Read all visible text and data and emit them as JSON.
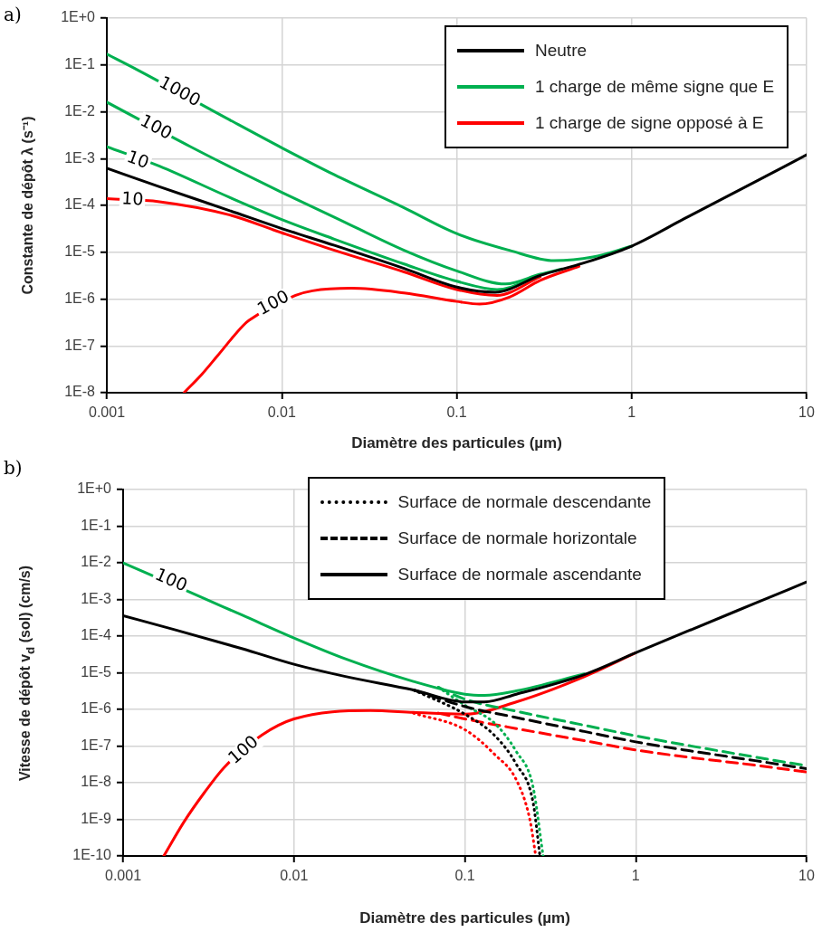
{
  "chart_data": [
    {
      "type": "line",
      "title": "a)",
      "xlabel": "Diamètre des particules (µm)",
      "ylabel": "Constante de dépôt λ (s⁻¹)",
      "log": "xy",
      "grid": true,
      "legend": "top right",
      "xlim": [
        0.001,
        10
      ],
      "xticks": [
        0.001,
        0.01,
        0.1,
        1,
        10
      ],
      "ylim": [
        1e-08,
        1
      ],
      "yticks": [
        {
          "value": 1e-08,
          "label": "1E-8"
        },
        {
          "value": 1e-07,
          "label": "1E-7"
        },
        {
          "value": 1e-06,
          "label": "1E-6"
        },
        {
          "value": 1e-05,
          "label": "1E-5"
        },
        {
          "value": 0.0001,
          "label": "1E-4"
        },
        {
          "value": 0.001,
          "label": "1E-3"
        },
        {
          "value": 0.01,
          "label": "1E-2"
        },
        {
          "value": 0.1,
          "label": "1E-1"
        },
        {
          "value": 1,
          "label": "1E+0"
        }
      ],
      "series": [
        {
          "name": "Neutre",
          "color": "#000000",
          "x": [
            0.001,
            0.002,
            0.005,
            0.01,
            0.02,
            0.05,
            0.1,
            0.166,
            0.3,
            0.5,
            1,
            2,
            5,
            10
          ],
          "values": [
            0.00062,
            0.00025,
            7.8e-05,
            3.2e-05,
            1.4e-05,
            4.5e-06,
            1.8e-06,
            1.4e-06,
            3.2e-06,
            5.5e-06,
            1.35e-05,
            5.2e-05,
            0.00031,
            0.0012
          ]
        },
        {
          "name": "1 charge de même signe que  E",
          "color": "#00b050",
          "x": [
            0.001,
            0.0015,
            0.005,
            0.01,
            0.02,
            0.05,
            0.1,
            0.2,
            0.36,
            0.6,
            1
          ],
          "values": [
            0.17,
            0.078,
            0.0068,
            0.0017,
            0.00045,
            8.9e-05,
            2.5e-05,
            1.1e-05,
            6.6e-06,
            7.9e-06,
            1.35e-05
          ]
        },
        {
          "color": "#00b050",
          "x": [
            0.001,
            0.003,
            0.005,
            0.01,
            0.02,
            0.05,
            0.1,
            0.19,
            0.3,
            0.4
          ],
          "values": [
            0.016,
            0.0018,
            0.00068,
            0.00019,
            5.6e-05,
            1.1e-05,
            4e-06,
            2.1e-06,
            3.4e-06,
            4.4e-06
          ]
        },
        {
          "color": "#00b050",
          "x": [
            0.001,
            0.002,
            0.005,
            0.01,
            0.02,
            0.05,
            0.1,
            0.17,
            0.3
          ],
          "values": [
            0.0018,
            0.00069,
            0.00015,
            5e-05,
            1.9e-05,
            5.6e-06,
            2.4e-06,
            1.6e-06,
            3.2e-06
          ]
        },
        {
          "name": "1 charge de signe opposé à E",
          "color": "#ff0000",
          "x": [
            0.00276,
            0.0035,
            0.0043,
            0.006,
            0.0065,
            0.012,
            0.015,
            0.025,
            0.05,
            0.1,
            0.135,
            0.2,
            0.3,
            0.5
          ],
          "values": [
            1e-08,
            2.5e-08,
            6.2e-08,
            2.7e-07,
            3.5e-07,
            1.2e-06,
            1.5e-06,
            1.7e-06,
            1.35e-06,
            8.9e-07,
            7.8e-07,
            1.1e-06,
            2.5e-06,
            5e-06
          ]
        },
        {
          "color": "#ff0000",
          "x": [
            0.001,
            0.002,
            0.005,
            0.01,
            0.02,
            0.05,
            0.1,
            0.17,
            0.3
          ],
          "values": [
            0.00014,
            0.00012,
            6.3e-05,
            2.6e-05,
            1.1e-05,
            3.8e-06,
            1.6e-06,
            1.2e-06,
            3e-06
          ]
        }
      ],
      "annotations": [
        {
          "text": "1000",
          "x": 0.0026,
          "y": 0.026
        },
        {
          "text": "100",
          "x": 0.0019,
          "y": 0.0045
        },
        {
          "text": "10",
          "x": 0.0015,
          "y": 0.0009
        },
        {
          "text": "10",
          "x": 0.0014,
          "y": 0.00013
        },
        {
          "text": "100",
          "x": 0.009,
          "y": 8e-07
        }
      ]
    },
    {
      "type": "line",
      "title": "b)",
      "xlabel": "Diamètre des particules (µm)",
      "ylabel": "Vitesse de dépôt v$_{d}$  (sol) (cm/s)",
      "log": "xy",
      "grid": true,
      "legend": "top",
      "xlim": [
        0.001,
        10
      ],
      "xticks": [
        0.001,
        0.01,
        0.1,
        1,
        10
      ],
      "ylim": [
        1e-10,
        1
      ],
      "yticks": [
        {
          "value": 1e-10,
          "label": "1E-10"
        },
        {
          "value": 1e-09,
          "label": "1E-9"
        },
        {
          "value": 1e-08,
          "label": "1E-8"
        },
        {
          "value": 1e-07,
          "label": "1E-7"
        },
        {
          "value": 1e-06,
          "label": "1E-6"
        },
        {
          "value": 1e-05,
          "label": "1E-5"
        },
        {
          "value": 0.0001,
          "label": "1E-4"
        },
        {
          "value": 0.001,
          "label": "1E-3"
        },
        {
          "value": 0.01,
          "label": "1E-2"
        },
        {
          "value": 0.1,
          "label": "1E-1"
        },
        {
          "value": 1,
          "label": "1E+0"
        }
      ],
      "series": [
        {
          "name": "Surface de normale descendante",
          "color": "#000000",
          "line_style": "dotted",
          "x": [
            0.05,
            0.1,
            0.15,
            0.2,
            0.25,
            0.275
          ],
          "values": [
            3.4e-06,
            7.4e-07,
            1.9e-07,
            3.2e-08,
            3.1e-09,
            1e-10
          ]
        },
        {
          "name": "Surface de normale horizontale",
          "color": "#000000",
          "line_style": "dashed",
          "x": [
            0.05,
            0.1,
            0.2,
            0.5,
            1,
            2,
            5,
            10
          ],
          "values": [
            3.4e-06,
            1.2e-06,
            6e-07,
            2.5e-07,
            1.3e-07,
            7.6e-08,
            4e-08,
            2.4e-08
          ]
        },
        {
          "name": "Surface de normale ascendante",
          "color": "#000000",
          "line_style": "solid",
          "x": [
            0.001,
            0.002,
            0.005,
            0.01,
            0.02,
            0.05,
            0.1,
            0.13,
            0.2,
            0.5,
            1,
            2,
            5,
            10
          ],
          "values": [
            0.00036,
            0.00015,
            4.5e-05,
            1.7e-05,
            7.9e-06,
            3.4e-06,
            1.6e-06,
            1.6e-06,
            2.6e-06,
            8.9e-06,
            3.5e-05,
            0.000135,
            0.00079,
            0.003
          ]
        },
        {
          "color": "#00b050",
          "line_style": "dotted",
          "x": [
            0.07,
            0.1,
            0.15,
            0.2,
            0.25,
            0.287
          ],
          "values": [
            4e-06,
            1.3e-06,
            4.1e-07,
            7.1e-08,
            8.1e-09,
            1e-10
          ]
        },
        {
          "color": "#00b050",
          "line_style": "dashed",
          "x": [
            0.07,
            0.1,
            0.2,
            0.5,
            1,
            2,
            5,
            10
          ],
          "values": [
            4e-06,
            1.9e-06,
            8.9e-07,
            3.7e-07,
            1.9e-07,
            1.05e-07,
            5e-08,
            2.9e-08
          ]
        },
        {
          "color": "#00b050",
          "line_style": "solid",
          "x": [
            0.001,
            0.003,
            0.005,
            0.01,
            0.02,
            0.05,
            0.1,
            0.13,
            0.2,
            0.5
          ],
          "values": [
            0.01,
            0.00105,
            0.00037,
            8.9e-05,
            2.4e-05,
            5.8e-06,
            2.6e-06,
            2.4e-06,
            3.2e-06,
            9.3e-06
          ]
        },
        {
          "color": "#ff0000",
          "line_style": "dotted",
          "x": [
            0.05,
            0.1,
            0.15,
            0.2,
            0.24,
            0.26
          ],
          "values": [
            7.9e-07,
            2.8e-07,
            5.8e-08,
            1.2e-08,
            1e-09,
            1e-10
          ]
        },
        {
          "color": "#ff0000",
          "line_style": "dashed",
          "x": [
            0.07,
            0.1,
            0.2,
            0.5,
            1,
            2,
            5,
            10
          ],
          "values": [
            7.9e-07,
            5.5e-07,
            3e-07,
            1.4e-07,
            7.8e-08,
            5e-08,
            3e-08,
            1.95e-08
          ]
        },
        {
          "color": "#ff0000",
          "line_style": "solid",
          "x": [
            0.00173,
            0.00227,
            0.003,
            0.0039,
            0.0065,
            0.01,
            0.028,
            0.05,
            0.1,
            0.2,
            0.5,
            1
          ],
          "values": [
            1e-10,
            8.5e-10,
            5.5e-09,
            2.6e-08,
            2e-07,
            5.5e-07,
            9.3e-07,
            8.3e-07,
            7.4e-07,
            1.6e-06,
            7.8e-06,
            3.5e-05
          ]
        }
      ],
      "annotations": [
        {
          "text": "100",
          "x": 0.0019,
          "y": 0.0032
        },
        {
          "text": "100",
          "x": 0.0051,
          "y": 7.5e-08
        }
      ]
    }
  ]
}
